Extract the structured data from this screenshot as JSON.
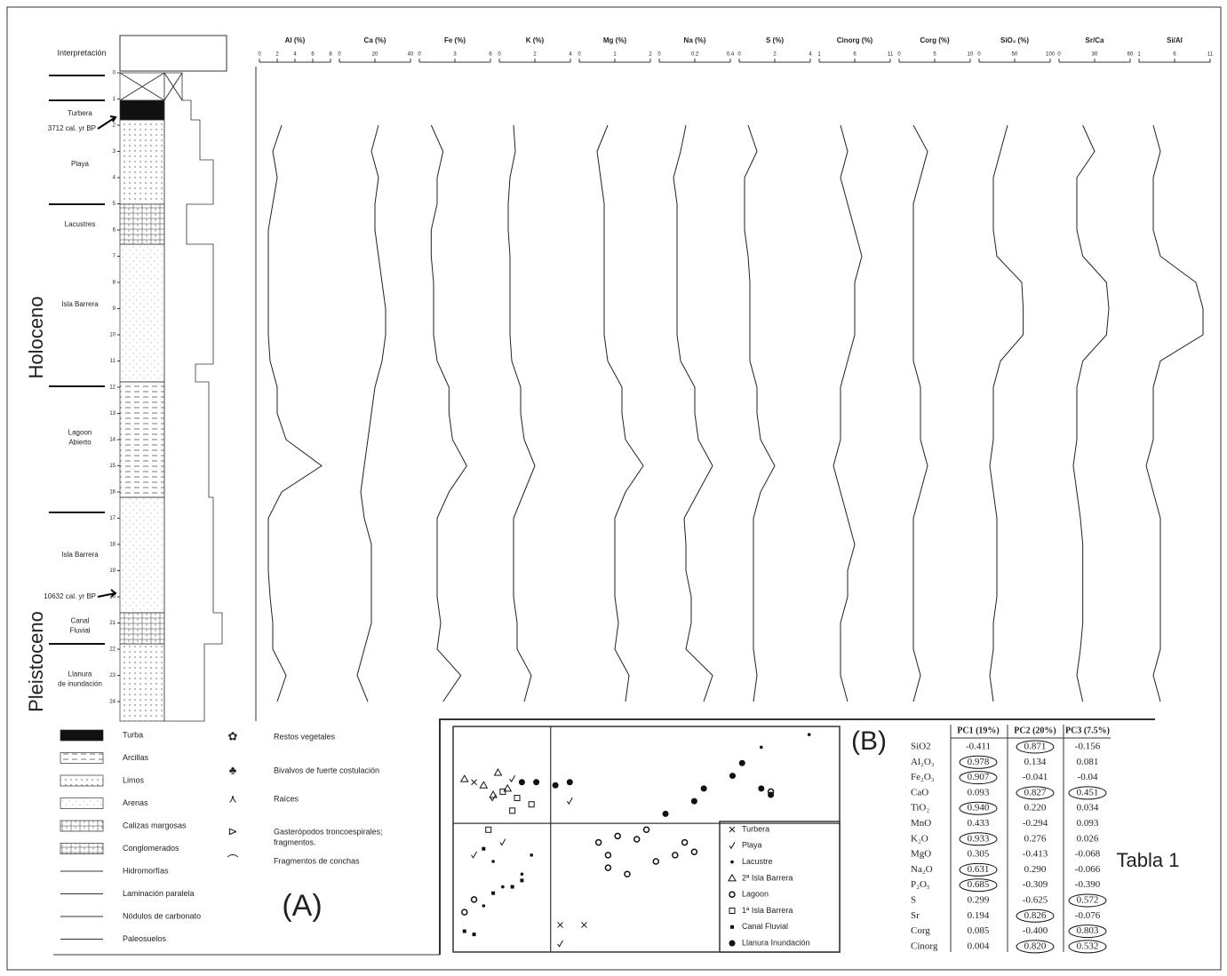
{
  "stratigraphy": {
    "header": "Interpretación",
    "depth_ticks": [
      0,
      1,
      2,
      3,
      4,
      5,
      6,
      7,
      8,
      9,
      10,
      11,
      12,
      13,
      14,
      15,
      16,
      17,
      18,
      19,
      20,
      21,
      22,
      23,
      24
    ],
    "units": [
      [
        "Turbera"
      ],
      [
        "Playa"
      ],
      [
        "Lacustres"
      ],
      [
        "Isla Barrera"
      ],
      [
        "Lagoon",
        "Abierto"
      ],
      [
        "Isla Barrera"
      ],
      [
        "Canal",
        "Fluvial"
      ],
      [
        "Llanura",
        "de inundación"
      ]
    ],
    "eras": [
      "Holoceno",
      "Pleistoceno"
    ],
    "dates": [
      "3712 cal. yr BP",
      "10632 cal. yr BP"
    ]
  },
  "profiles": {
    "depths": [
      2,
      3,
      4,
      5,
      6,
      7,
      8,
      9,
      10,
      11,
      12,
      13,
      14,
      15,
      16,
      17,
      18,
      19,
      20,
      21,
      22,
      23,
      24
    ],
    "columns": [
      {
        "label": "Al (%)",
        "xlim": [
          0,
          8
        ],
        "xticks": [
          0,
          2,
          4,
          6,
          8
        ],
        "values": [
          2.5,
          1.5,
          2.0,
          1.5,
          1.0,
          1.0,
          1.0,
          1.0,
          1.0,
          1.2,
          2.0,
          2.0,
          3.0,
          7.0,
          2.5,
          1.0,
          1.0,
          1.0,
          1.2,
          1.5,
          1.5,
          3.0,
          2.0
        ]
      },
      {
        "label": "Ca (%)",
        "xlim": [
          0,
          40
        ],
        "xticks": [
          0,
          20,
          40
        ],
        "values": [
          22,
          18,
          22,
          20,
          20,
          22,
          24,
          26,
          26,
          24,
          20,
          18,
          16,
          14,
          12,
          14,
          18,
          18,
          18,
          18,
          14,
          10,
          16
        ]
      },
      {
        "label": "Fe (%)",
        "xlim": [
          0,
          6
        ],
        "xticks": [
          0,
          3,
          6
        ],
        "values": [
          1.0,
          2.0,
          1.5,
          1.5,
          1.0,
          1.0,
          1.2,
          1.2,
          1.2,
          1.5,
          2.5,
          2.5,
          2.8,
          4.0,
          2.5,
          1.5,
          1.5,
          1.5,
          1.5,
          1.8,
          1.5,
          3.5,
          2.0
        ]
      },
      {
        "label": "K (%)",
        "xlim": [
          0,
          4
        ],
        "xticks": [
          0,
          2,
          4
        ],
        "values": [
          0.8,
          0.9,
          0.6,
          0.5,
          0.5,
          0.6,
          0.6,
          0.6,
          0.6,
          0.7,
          1.2,
          1.2,
          1.4,
          2.0,
          1.4,
          0.8,
          0.8,
          0.8,
          0.8,
          1.0,
          1.0,
          1.8,
          1.4
        ]
      },
      {
        "label": "Mg (%)",
        "xlim": [
          0,
          2
        ],
        "xticks": [
          0,
          1,
          2
        ],
        "values": [
          0.8,
          0.5,
          0.6,
          0.7,
          0.7,
          0.7,
          0.7,
          0.7,
          0.7,
          0.8,
          1.2,
          1.2,
          1.3,
          1.8,
          1.3,
          1.0,
          1.0,
          1.0,
          1.0,
          1.1,
          1.0,
          1.4,
          1.3
        ]
      },
      {
        "label": "Na (%)",
        "xlim": [
          0,
          0.4
        ],
        "xticks": [
          0,
          0.2,
          0.4
        ],
        "values": [
          0.15,
          0.12,
          0.08,
          0.1,
          0.1,
          0.1,
          0.1,
          0.1,
          0.1,
          0.12,
          0.2,
          0.2,
          0.22,
          0.3,
          0.22,
          0.14,
          0.15,
          0.15,
          0.18,
          0.18,
          0.15,
          0.3,
          0.25
        ]
      },
      {
        "label": "S (%)",
        "xlim": [
          0,
          4
        ],
        "xticks": [
          0,
          2,
          4
        ],
        "values": [
          0.5,
          1.0,
          0.3,
          0.3,
          0.3,
          0.5,
          0.6,
          0.6,
          0.6,
          0.6,
          1.0,
          1.0,
          1.2,
          2.0,
          1.2,
          0.8,
          0.8,
          0.8,
          0.8,
          0.8,
          0.8,
          1.0,
          0.8
        ]
      },
      {
        "label": "Cinorg (%)",
        "xlim": [
          1,
          11
        ],
        "xticks": [
          1,
          6,
          11
        ],
        "values": [
          4,
          5,
          4,
          5,
          6,
          7,
          6,
          6,
          6,
          5,
          4,
          4,
          4,
          3,
          4,
          5,
          6,
          5,
          5,
          4,
          4,
          4,
          5
        ]
      },
      {
        "label": "Corg (%)",
        "xlim": [
          0,
          10
        ],
        "xticks": [
          0,
          5,
          10
        ],
        "values": [
          2,
          4,
          3,
          2,
          2,
          2,
          2,
          2,
          2,
          2,
          3,
          3,
          3,
          4,
          3,
          2,
          2,
          2,
          2,
          2,
          2,
          3,
          2
        ]
      },
      {
        "label": "SiO₂ (%)",
        "xlim": [
          0,
          100
        ],
        "xticks": [
          0,
          50,
          100
        ],
        "values": [
          40,
          30,
          20,
          20,
          20,
          25,
          60,
          62,
          62,
          30,
          20,
          20,
          20,
          15,
          20,
          25,
          25,
          25,
          25,
          20,
          20,
          15,
          20
        ]
      },
      {
        "label": "Sr/Ca",
        "xlim": [
          0,
          60
        ],
        "xticks": [
          0,
          30,
          60
        ],
        "values": [
          20,
          30,
          15,
          15,
          15,
          20,
          40,
          42,
          40,
          20,
          15,
          15,
          15,
          12,
          15,
          18,
          20,
          20,
          20,
          20,
          18,
          15,
          20
        ]
      },
      {
        "label": "Si/Al",
        "xlim": [
          1,
          11
        ],
        "xticks": [
          1,
          6,
          11
        ],
        "values": [
          3,
          4,
          3,
          3,
          3,
          4,
          9,
          10,
          10,
          4,
          3,
          3,
          3,
          2,
          3,
          4,
          4,
          4,
          4,
          4,
          4,
          3,
          4
        ]
      }
    ]
  },
  "legend": {
    "lithology": [
      "Turba",
      "Arcillas",
      "Limos",
      "Arenas",
      "Calizas margosas",
      "Conglomerados",
      "Hidromorfías",
      "Laminación paralela",
      "Nódulos de carbonato",
      "Paleosuelos"
    ],
    "symbols": [
      [
        "Restos vegetales"
      ],
      [
        "Bivalvos de fuerte costulación"
      ],
      [
        "Raíces"
      ],
      [
        "Gasterópodos troncoespirales;",
        "fragmentos."
      ],
      [
        "Fragmentos de conchas"
      ]
    ]
  },
  "panel_labels": [
    "(A)",
    "(B)"
  ],
  "scatter": {
    "xlim": [
      -1,
      3
    ],
    "ylim": [
      -2,
      1.5
    ],
    "groups": [
      {
        "name": "Turbera",
        "marker": "x",
        "x": [
          0.1,
          0.35,
          -0.8
        ],
        "y": [
          -1.6,
          -1.6,
          0.65
        ]
      },
      {
        "name": "Playa",
        "marker": "check",
        "x": [
          -0.6,
          -0.4,
          0.2,
          0.1,
          -0.5,
          -0.8
        ],
        "y": [
          0.4,
          0.7,
          0.35,
          -1.9,
          -0.3,
          -0.5
        ]
      },
      {
        "name": "Lacustre",
        "marker": "dot",
        "x": [
          -0.7,
          -0.5,
          -0.3,
          -0.2,
          -0.6,
          2.2,
          2.7
        ],
        "y": [
          -1.3,
          -1.0,
          -0.8,
          -0.5,
          -0.6,
          1.2,
          1.4
        ]
      },
      {
        "name": "2ª Isla Barrera",
        "marker": "triangle",
        "x": [
          -0.9,
          -0.7,
          -0.55,
          -0.45,
          -0.6
        ],
        "y": [
          0.7,
          0.6,
          0.8,
          0.55,
          0.45
        ]
      },
      {
        "name": "Lagoon",
        "marker": "circle",
        "x": [
          -0.9,
          -0.8,
          0.5,
          0.7,
          0.9,
          1.0,
          0.6,
          1.1,
          1.3,
          1.4,
          1.5,
          0.8,
          0.6,
          2.3
        ],
        "y": [
          -1.4,
          -1.2,
          -0.3,
          -0.2,
          -0.25,
          -0.1,
          -0.7,
          -0.6,
          -0.5,
          -0.3,
          -0.45,
          -0.8,
          -0.5,
          0.5
        ]
      },
      {
        "name": "1ª Isla Barrera",
        "marker": "square",
        "x": [
          -0.65,
          -0.35,
          -0.4,
          -0.2,
          -0.5
        ],
        "y": [
          -0.1,
          0.4,
          0.2,
          0.3,
          0.5
        ]
      },
      {
        "name": "Canal Fluvial",
        "marker": "star",
        "x": [
          -0.9,
          -0.8,
          -0.6,
          -0.4,
          -0.3,
          -0.7
        ],
        "y": [
          -1.7,
          -1.75,
          -1.1,
          -1.0,
          -0.9,
          -0.4
        ]
      },
      {
        "name": "Llanura Inundación",
        "marker": "bigdot",
        "x": [
          -0.3,
          -0.15,
          0.05,
          0.2,
          1.2,
          1.5,
          1.6,
          1.9,
          2.0,
          2.2,
          2.3
        ],
        "y": [
          0.65,
          0.65,
          0.6,
          0.65,
          0.15,
          0.35,
          0.55,
          0.75,
          0.95,
          0.55,
          0.45
        ]
      }
    ]
  },
  "table": {
    "title": "Tabla 1",
    "columns": [
      "PC1 (19%)",
      "PC2 (20%)",
      "PC3 (7.5%)"
    ],
    "rows": [
      {
        "name": "SiO2",
        "cells": [
          {
            "text": "-0.411"
          },
          {
            "text": "0.871",
            "circled": true
          },
          {
            "text": "-0.156"
          }
        ]
      },
      {
        "name": "Al₂O₃",
        "cells": [
          {
            "text": "0.978",
            "circled": true
          },
          {
            "text": "0.134"
          },
          {
            "text": "0.081"
          }
        ]
      },
      {
        "name": "Fe₂O₃",
        "cells": [
          {
            "text": "0.907",
            "circled": true
          },
          {
            "text": "-0.041"
          },
          {
            "text": "-0.04"
          }
        ]
      },
      {
        "name": "CaO",
        "cells": [
          {
            "text": "0.093"
          },
          {
            "text": "0.827",
            "circled": true
          },
          {
            "text": "0.451",
            "circled": true
          }
        ]
      },
      {
        "name": "TiO₂",
        "cells": [
          {
            "text": "0.940",
            "circled": true
          },
          {
            "text": "0.220"
          },
          {
            "text": "0.034"
          }
        ]
      },
      {
        "name": "MnO",
        "cells": [
          {
            "text": "0.433"
          },
          {
            "text": "-0.294"
          },
          {
            "text": "0.093"
          }
        ]
      },
      {
        "name": "K₂O",
        "cells": [
          {
            "text": "0.933",
            "circled": true
          },
          {
            "text": "0.276"
          },
          {
            "text": "0.026"
          }
        ]
      },
      {
        "name": "MgO",
        "cells": [
          {
            "text": "0.305"
          },
          {
            "text": "-0.413"
          },
          {
            "text": "-0.068"
          }
        ]
      },
      {
        "name": "Na₂O",
        "cells": [
          {
            "text": "0.631",
            "circled": true
          },
          {
            "text": "0.290"
          },
          {
            "text": "-0.066"
          }
        ]
      },
      {
        "name": "P₂O₅",
        "cells": [
          {
            "text": "0.685",
            "circled": true
          },
          {
            "text": "-0.309"
          },
          {
            "text": "-0.390"
          }
        ]
      },
      {
        "name": "S",
        "cells": [
          {
            "text": "0.299"
          },
          {
            "text": "-0.625"
          },
          {
            "text": "0.572",
            "circled": true
          }
        ]
      },
      {
        "name": "Sr",
        "cells": [
          {
            "text": "0.194"
          },
          {
            "text": "0.826",
            "circled": true
          },
          {
            "text": "-0.076"
          }
        ]
      },
      {
        "name": "Corg",
        "cells": [
          {
            "text": "0.085"
          },
          {
            "text": "-0.400"
          },
          {
            "text": "0.803",
            "circled": true
          }
        ]
      },
      {
        "name": "Cinorg",
        "cells": [
          {
            "text": "0.004"
          },
          {
            "text": "0.820",
            "circled": true
          },
          {
            "text": "0.532",
            "circled": true
          }
        ]
      }
    ]
  }
}
